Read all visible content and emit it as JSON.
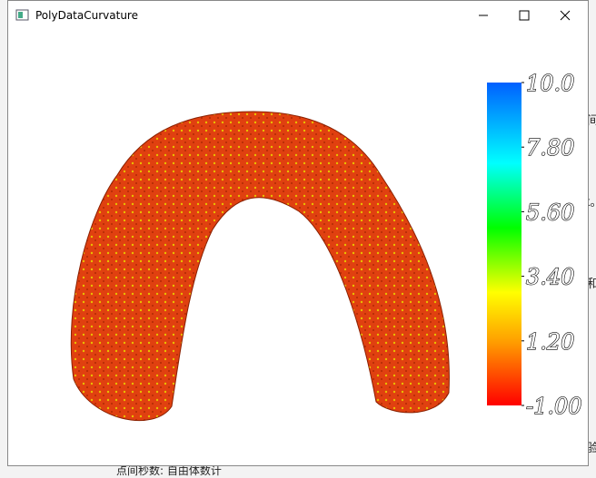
{
  "window": {
    "title": "PolyDataCurvature"
  },
  "scalar_bar": {
    "range": [
      -1,
      10
    ],
    "ticks": [
      {
        "value": 10,
        "label": "10.0"
      },
      {
        "value": 7.8,
        "label": "7.80"
      },
      {
        "value": 5.6,
        "label": "5.60"
      },
      {
        "value": 3.4,
        "label": "3.40"
      },
      {
        "value": 1.2,
        "label": "1.20"
      },
      {
        "value": -1,
        "label": "-1.00"
      }
    ]
  },
  "background": {
    "fragments": [
      "间",
      "k。",
      "和",
      "验"
    ],
    "footer": "点间秒数: 自由体数计"
  }
}
